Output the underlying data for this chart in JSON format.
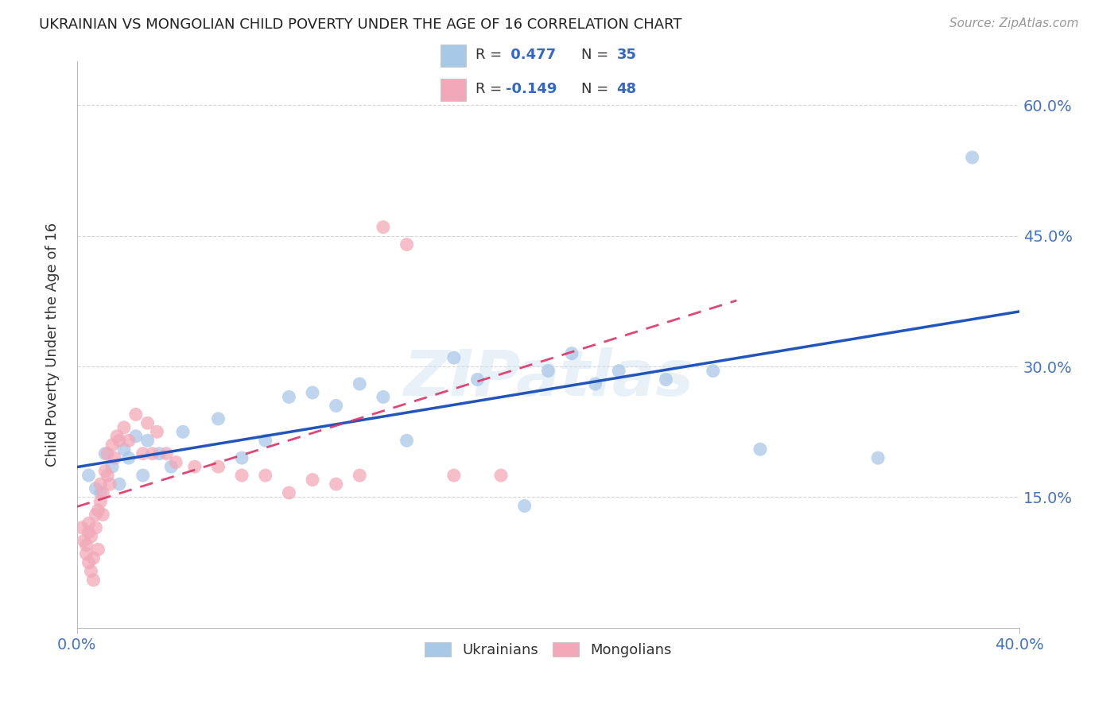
{
  "title": "UKRAINIAN VS MONGOLIAN CHILD POVERTY UNDER THE AGE OF 16 CORRELATION CHART",
  "source": "Source: ZipAtlas.com",
  "ylabel": "Child Poverty Under the Age of 16",
  "xlim": [
    0.0,
    0.4
  ],
  "ylim": [
    0.0,
    0.65
  ],
  "xticks": [
    0.0,
    0.4
  ],
  "xticklabels": [
    "0.0%",
    "40.0%"
  ],
  "ytick_positions": [
    0.15,
    0.3,
    0.45,
    0.6
  ],
  "yticklabels_right": [
    "15.0%",
    "30.0%",
    "45.0%",
    "60.0%"
  ],
  "blue_color": "#a8c8e8",
  "pink_color": "#f2a8b8",
  "blue_line_color": "#2255bb",
  "pink_line_color": "#dd3366",
  "grid_color": "#cccccc",
  "watermark_text": "ZIPatlas",
  "blue_scatter_x": [
    0.005,
    0.008,
    0.01,
    0.012,
    0.015,
    0.018,
    0.02,
    0.022,
    0.025,
    0.028,
    0.03,
    0.035,
    0.04,
    0.045,
    0.06,
    0.07,
    0.08,
    0.09,
    0.1,
    0.11,
    0.12,
    0.13,
    0.14,
    0.16,
    0.17,
    0.19,
    0.2,
    0.21,
    0.22,
    0.23,
    0.25,
    0.27,
    0.29,
    0.34,
    0.38
  ],
  "blue_scatter_y": [
    0.175,
    0.16,
    0.155,
    0.2,
    0.185,
    0.165,
    0.205,
    0.195,
    0.22,
    0.175,
    0.215,
    0.2,
    0.185,
    0.225,
    0.24,
    0.195,
    0.215,
    0.265,
    0.27,
    0.255,
    0.28,
    0.265,
    0.215,
    0.31,
    0.285,
    0.14,
    0.295,
    0.315,
    0.28,
    0.295,
    0.285,
    0.295,
    0.205,
    0.195,
    0.54
  ],
  "pink_scatter_x": [
    0.002,
    0.003,
    0.004,
    0.004,
    0.005,
    0.005,
    0.005,
    0.006,
    0.006,
    0.007,
    0.007,
    0.008,
    0.008,
    0.009,
    0.009,
    0.01,
    0.01,
    0.011,
    0.011,
    0.012,
    0.013,
    0.013,
    0.014,
    0.015,
    0.016,
    0.017,
    0.018,
    0.02,
    0.022,
    0.025,
    0.028,
    0.03,
    0.032,
    0.034,
    0.038,
    0.042,
    0.05,
    0.06,
    0.07,
    0.08,
    0.09,
    0.1,
    0.11,
    0.12,
    0.13,
    0.14,
    0.16,
    0.18
  ],
  "pink_scatter_y": [
    0.115,
    0.1,
    0.095,
    0.085,
    0.12,
    0.11,
    0.075,
    0.105,
    0.065,
    0.08,
    0.055,
    0.13,
    0.115,
    0.135,
    0.09,
    0.165,
    0.145,
    0.155,
    0.13,
    0.18,
    0.175,
    0.2,
    0.165,
    0.21,
    0.195,
    0.22,
    0.215,
    0.23,
    0.215,
    0.245,
    0.2,
    0.235,
    0.2,
    0.225,
    0.2,
    0.19,
    0.185,
    0.185,
    0.175,
    0.175,
    0.155,
    0.17,
    0.165,
    0.175,
    0.46,
    0.44,
    0.175,
    0.175
  ],
  "blue_line_x_start": 0.0,
  "blue_line_x_end": 0.4,
  "pink_line_x_start": 0.0,
  "pink_line_x_end": 0.28
}
